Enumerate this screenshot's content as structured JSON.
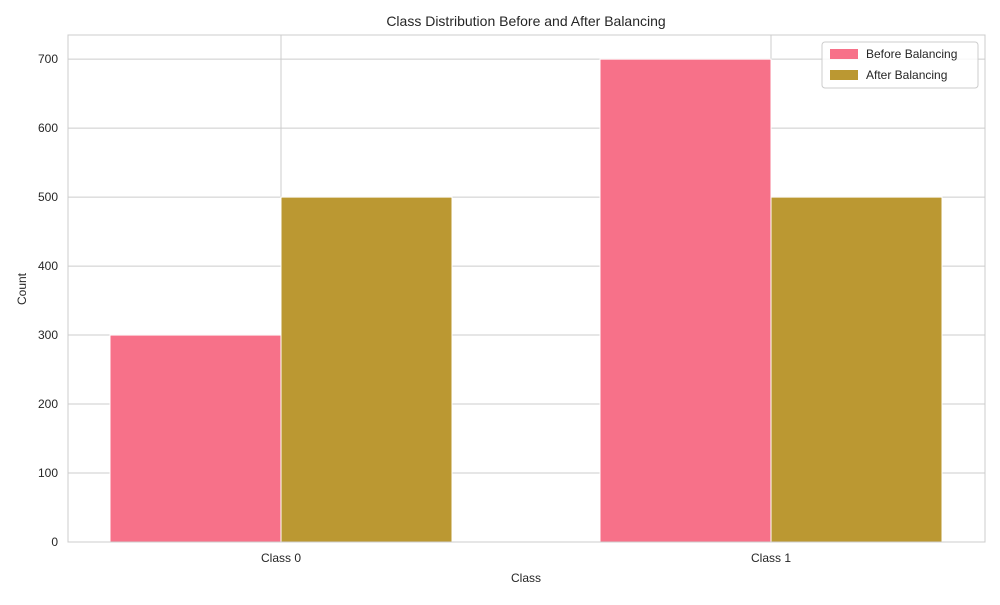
{
  "chart_data": {
    "type": "bar",
    "title": "Class Distribution Before and After Balancing",
    "xlabel": "Class",
    "ylabel": "Count",
    "categories": [
      "Class 0",
      "Class 1"
    ],
    "series": [
      {
        "name": "Before Balancing",
        "values": [
          300,
          700
        ],
        "color": "#f77189"
      },
      {
        "name": "After Balancing",
        "values": [
          500,
          500
        ],
        "color": "#bb9832"
      }
    ],
    "ylim": [
      0,
      735
    ],
    "yticks": [
      0,
      100,
      200,
      300,
      400,
      500,
      600,
      700
    ],
    "grid": true,
    "legend_position": "top-right"
  }
}
